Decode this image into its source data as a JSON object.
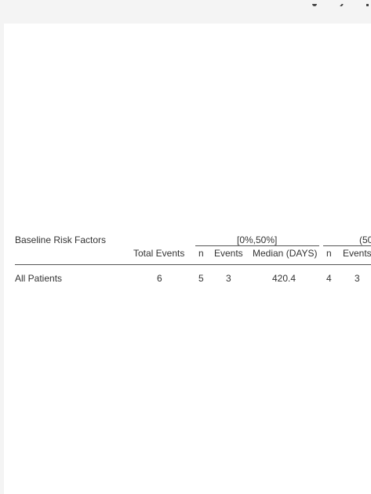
{
  "toolbar": {
    "icons": [
      "person-icon",
      "collapse-arrow-icon",
      "extra-icon"
    ]
  },
  "table": {
    "row_header_label": "Baseline Risk Factors",
    "groups": [
      {
        "label": "[0%,50%]",
        "columns": [
          "n",
          "Events",
          "Median (DAYS)"
        ]
      },
      {
        "label": "(50",
        "columns": [
          "n",
          "Events"
        ]
      }
    ],
    "total_events_header": "Total Events",
    "rows": [
      {
        "label": "All Patients",
        "total_events": "6",
        "group1": {
          "n": "5",
          "events": "3",
          "median": "420.4"
        },
        "group2": {
          "n": "4",
          "events": "3"
        }
      }
    ]
  }
}
